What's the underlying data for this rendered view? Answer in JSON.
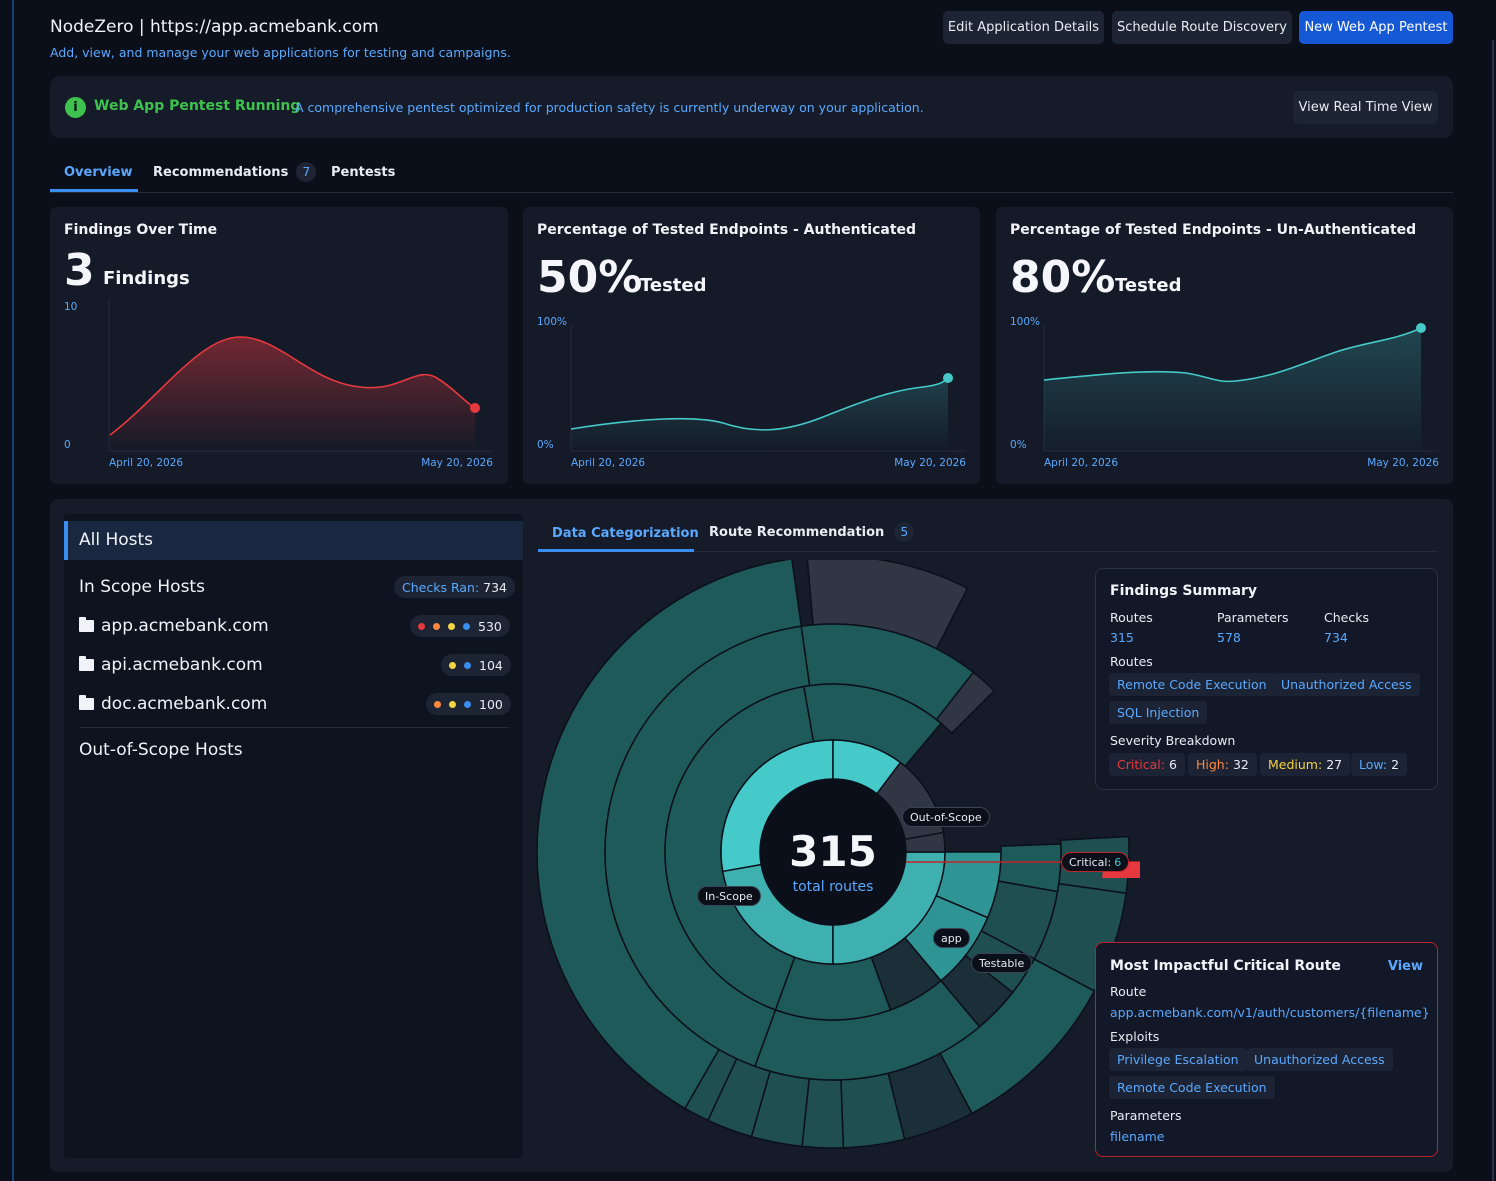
{
  "header": {
    "title": "NodeZero | https://app.acmebank.com",
    "subtitle": "Add, view, and manage your web applications for testing and campaigns.",
    "buttons": {
      "edit": "Edit Application Details",
      "schedule": "Schedule Route Discovery",
      "new_pentest": "New Web App Pentest"
    }
  },
  "banner": {
    "icon": "info-icon",
    "status": "Web App Pentest Running",
    "description": "A comprehensive pentest optimized for production safety is currently underway on your application.",
    "button": "View Real Time View"
  },
  "tabs": {
    "overview": "Overview",
    "recommendations": "Recommendations",
    "recommendations_count": "7",
    "pentests": "Pentests"
  },
  "cards": {
    "findings": {
      "title": "Findings Over Time",
      "value": "3",
      "unit": "Findings",
      "y_max": "10",
      "y_min": "0",
      "x_start": "April 20, 2026",
      "x_end": "May 20, 2026"
    },
    "auth": {
      "title": "Percentage of Tested Endpoints - Authenticated",
      "value": "50%",
      "unit": "Tested",
      "y_max": "100%",
      "y_min": "0%",
      "x_start": "April 20, 2026",
      "x_end": "May 20, 2026"
    },
    "unauth": {
      "title": "Percentage of Tested Endpoints - Un-Authenticated",
      "value": "80%",
      "unit": "Tested",
      "y_max": "100%",
      "y_min": "0%",
      "x_start": "April 20, 2026",
      "x_end": "May 20, 2026"
    }
  },
  "hosts": {
    "all": "All Hosts",
    "in_scope": "In Scope Hosts",
    "checks_label": "Checks Ran:",
    "checks_value": "734",
    "items": [
      {
        "name": "app.acmebank.com",
        "count": "530"
      },
      {
        "name": "api.acmebank.com",
        "count": "104"
      },
      {
        "name": "doc.acmebank.com",
        "count": "100"
      }
    ],
    "out_of_scope": "Out-of-Scope Hosts"
  },
  "inner_tabs": {
    "data_cat": "Data Categorization",
    "route_rec": "Route Recommendation",
    "route_rec_count": "5"
  },
  "sunburst": {
    "total": "315",
    "total_label": "total routes",
    "tags": {
      "out_of_scope": "Out-of-Scope",
      "in_scope": "In-Scope",
      "app": "app",
      "testable": "Testable",
      "critical_label": "Critical:",
      "critical_value": "6"
    }
  },
  "summary": {
    "title": "Findings Summary",
    "routes_label": "Routes",
    "routes_value": "315",
    "params_label": "Parameters",
    "params_value": "578",
    "checks_label": "Checks",
    "checks_value": "734",
    "routes_section": "Routes",
    "route_chips": [
      "Remote Code Execution",
      "Unauthorized Access",
      "SQL Injection"
    ],
    "severity_label": "Severity Breakdown",
    "severity": {
      "critical_label": "Critical:",
      "critical": "6",
      "high_label": "High:",
      "high": "32",
      "medium_label": "Medium:",
      "medium": "27",
      "low_label": "Low:",
      "low": "2"
    }
  },
  "critical_route": {
    "title": "Most Impactful Critical Route",
    "view": "View",
    "route_label": "Route",
    "route": "app.acmebank.com/v1/auth/customers/{filename}",
    "exploits_label": "Exploits",
    "exploits": [
      "Privilege Escalation",
      "Unauthorized Access",
      "Remote Code Execution"
    ],
    "params_label": "Parameters",
    "param": "filename"
  },
  "colors": {
    "accent": "#5aa9ff",
    "primary_button": "#1558d6",
    "running_green": "#3ec24e",
    "critical": "#e5393f",
    "high": "#ff8a3d",
    "medium": "#f5d442",
    "low": "#5aa9ff",
    "teal": "#45c9c9"
  }
}
